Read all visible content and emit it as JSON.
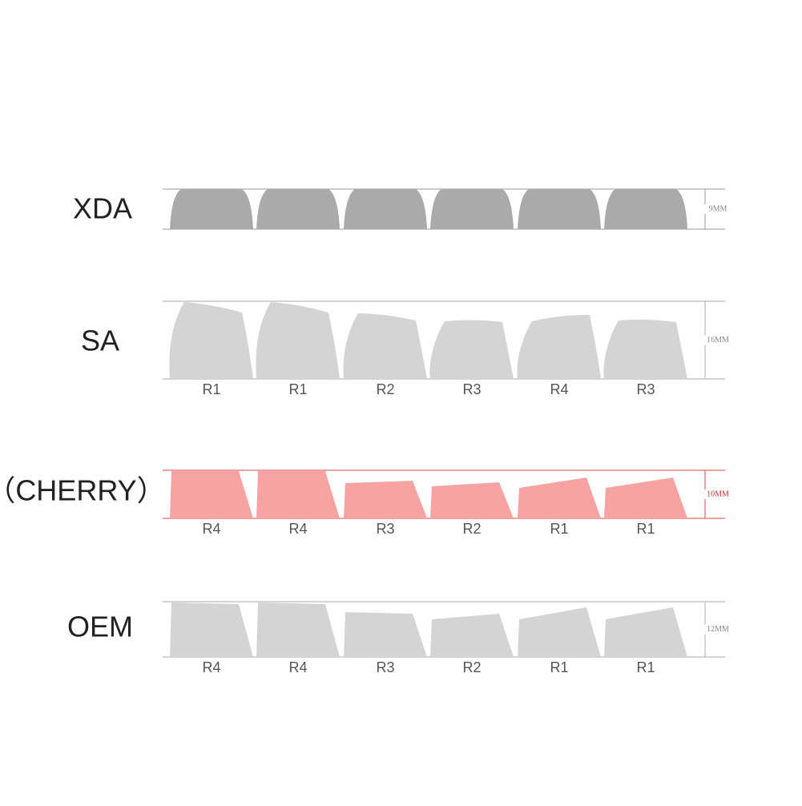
{
  "profiles": [
    {
      "name": "XDA",
      "height": "9MM"
    },
    {
      "name": "SA",
      "height": "16MM",
      "rows": [
        "R1",
        "R1",
        "R2",
        "R3",
        "R4",
        "R3"
      ]
    },
    {
      "name": "（CHERRY）",
      "height": "10MM",
      "rows": [
        "R4",
        "R4",
        "R3",
        "R2",
        "R1",
        "R1"
      ]
    },
    {
      "name": "OEM",
      "height": "12MM",
      "rows": [
        "R4",
        "R4",
        "R3",
        "R2",
        "R1",
        "R1"
      ]
    }
  ]
}
